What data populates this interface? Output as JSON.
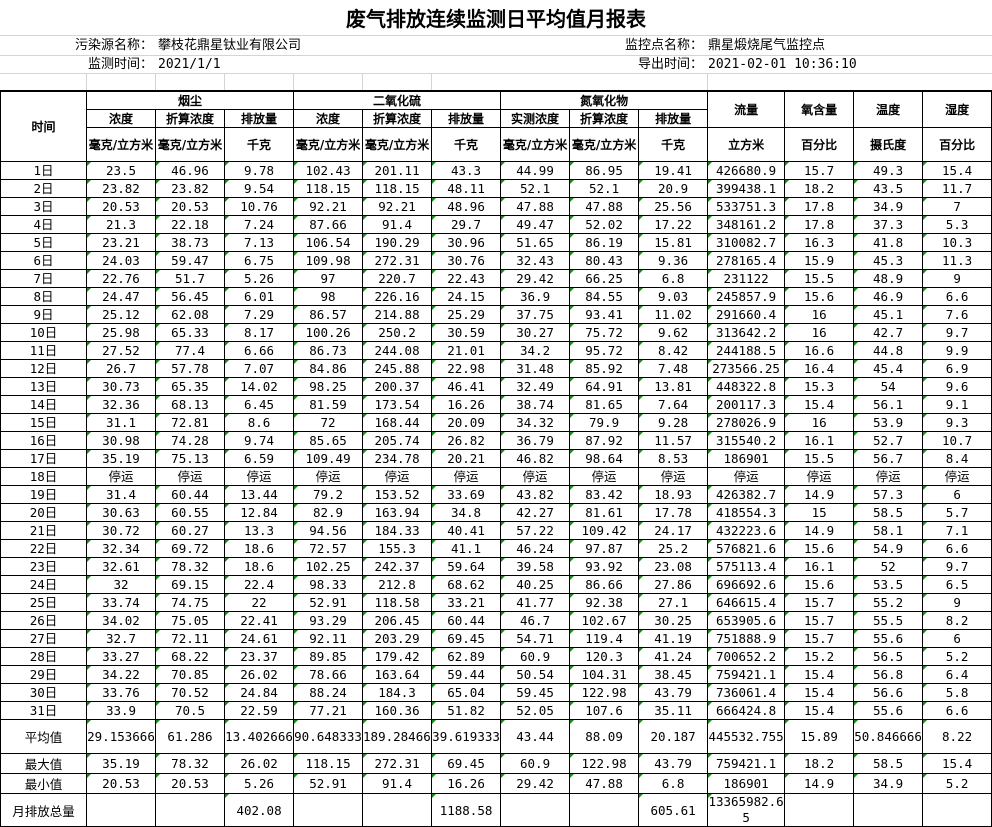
{
  "title": "废气排放连续监测日平均值月报表",
  "info": {
    "source_label": "污染源名称：",
    "source_value": "攀枝花鼎星钛业有限公司",
    "point_label": "监控点名称：",
    "point_value": "鼎星煅烧尾气监控点",
    "time_label": "监测时间：",
    "time_value": "2021/1/1",
    "export_label": "导出时间：",
    "export_value": "2021-02-01 10:36:10"
  },
  "header": {
    "time": "时间",
    "groups": [
      "烟尘",
      "二氧化硫",
      "氮氧化物"
    ],
    "single": [
      "流量",
      "氧含量",
      "温度",
      "湿度"
    ],
    "sub": [
      "浓度",
      "折算浓度",
      "排放量",
      "浓度",
      "折算浓度",
      "排放量",
      "实测浓度",
      "折算浓度",
      "排放量"
    ],
    "units": [
      "毫克/立方米",
      "毫克/立方米",
      "千克",
      "毫克/立方米",
      "毫克/立方米",
      "千克",
      "毫克/立方米",
      "毫克/立方米",
      "千克",
      "立方米",
      "百分比",
      "摄氏度",
      "百分比"
    ]
  },
  "rows": [
    [
      "1日",
      "23.5",
      "46.96",
      "9.78",
      "102.43",
      "201.11",
      "43.3",
      "44.99",
      "86.95",
      "19.41",
      "426680.9",
      "15.7",
      "49.3",
      "15.4"
    ],
    [
      "2日",
      "23.82",
      "23.82",
      "9.54",
      "118.15",
      "118.15",
      "48.11",
      "52.1",
      "52.1",
      "20.9",
      "399438.1",
      "18.2",
      "43.5",
      "11.7"
    ],
    [
      "3日",
      "20.53",
      "20.53",
      "10.76",
      "92.21",
      "92.21",
      "48.96",
      "47.88",
      "47.88",
      "25.56",
      "533751.3",
      "17.8",
      "34.9",
      "7"
    ],
    [
      "4日",
      "21.3",
      "22.18",
      "7.24",
      "87.66",
      "91.4",
      "29.7",
      "49.47",
      "52.02",
      "17.22",
      "348161.2",
      "17.8",
      "37.3",
      "5.3"
    ],
    [
      "5日",
      "23.21",
      "38.73",
      "7.13",
      "106.54",
      "190.29",
      "30.96",
      "51.65",
      "86.19",
      "15.81",
      "310082.7",
      "16.3",
      "41.8",
      "10.3"
    ],
    [
      "6日",
      "24.03",
      "59.47",
      "6.75",
      "109.98",
      "272.31",
      "30.76",
      "32.43",
      "80.43",
      "9.36",
      "278165.4",
      "15.9",
      "45.3",
      "11.3"
    ],
    [
      "7日",
      "22.76",
      "51.7",
      "5.26",
      "97",
      "220.7",
      "22.43",
      "29.42",
      "66.25",
      "6.8",
      "231122",
      "15.5",
      "48.9",
      "9"
    ],
    [
      "8日",
      "24.47",
      "56.45",
      "6.01",
      "98",
      "226.16",
      "24.15",
      "36.9",
      "84.55",
      "9.03",
      "245857.9",
      "15.6",
      "46.9",
      "6.6"
    ],
    [
      "9日",
      "25.12",
      "62.08",
      "7.29",
      "86.57",
      "214.88",
      "25.29",
      "37.75",
      "93.41",
      "11.02",
      "291660.4",
      "16",
      "45.1",
      "7.6"
    ],
    [
      "10日",
      "25.98",
      "65.33",
      "8.17",
      "100.26",
      "250.2",
      "30.59",
      "30.27",
      "75.72",
      "9.62",
      "313642.2",
      "16",
      "42.7",
      "9.7"
    ],
    [
      "11日",
      "27.52",
      "77.4",
      "6.66",
      "86.73",
      "244.08",
      "21.01",
      "34.2",
      "95.72",
      "8.42",
      "244188.5",
      "16.6",
      "44.8",
      "9.9"
    ],
    [
      "12日",
      "26.7",
      "57.78",
      "7.07",
      "84.86",
      "245.88",
      "22.98",
      "31.48",
      "85.92",
      "7.48",
      "273566.25",
      "16.4",
      "45.4",
      "6.9"
    ],
    [
      "13日",
      "30.73",
      "65.35",
      "14.02",
      "98.25",
      "200.37",
      "46.41",
      "32.49",
      "64.91",
      "13.81",
      "448322.8",
      "15.3",
      "54",
      "9.6"
    ],
    [
      "14日",
      "32.36",
      "68.13",
      "6.45",
      "81.59",
      "173.54",
      "16.26",
      "38.74",
      "81.65",
      "7.64",
      "200117.3",
      "15.4",
      "56.1",
      "9.1"
    ],
    [
      "15日",
      "31.1",
      "72.81",
      "8.6",
      "72",
      "168.44",
      "20.09",
      "34.32",
      "79.9",
      "9.28",
      "278026.9",
      "16",
      "53.9",
      "9.3"
    ],
    [
      "16日",
      "30.98",
      "74.28",
      "9.74",
      "85.65",
      "205.74",
      "26.82",
      "36.79",
      "87.92",
      "11.57",
      "315540.2",
      "16.1",
      "52.7",
      "10.7"
    ],
    [
      "17日",
      "35.19",
      "75.13",
      "6.59",
      "109.49",
      "234.78",
      "20.21",
      "46.82",
      "98.64",
      "8.53",
      "186901",
      "15.5",
      "56.7",
      "8.4"
    ],
    [
      "18日",
      "停运",
      "停运",
      "停运",
      "停运",
      "停运",
      "停运",
      "停运",
      "停运",
      "停运",
      "停运",
      "停运",
      "停运",
      "停运"
    ],
    [
      "19日",
      "31.4",
      "60.44",
      "13.44",
      "79.2",
      "153.52",
      "33.69",
      "43.82",
      "83.42",
      "18.93",
      "426382.7",
      "14.9",
      "57.3",
      "6"
    ],
    [
      "20日",
      "30.63",
      "60.55",
      "12.84",
      "82.9",
      "163.94",
      "34.8",
      "42.27",
      "81.61",
      "17.78",
      "418554.3",
      "15",
      "58.5",
      "5.7"
    ],
    [
      "21日",
      "30.72",
      "60.27",
      "13.3",
      "94.56",
      "184.33",
      "40.41",
      "57.22",
      "109.42",
      "24.17",
      "432223.6",
      "14.9",
      "58.1",
      "7.1"
    ],
    [
      "22日",
      "32.34",
      "69.72",
      "18.6",
      "72.57",
      "155.3",
      "41.1",
      "46.24",
      "97.87",
      "25.2",
      "576821.6",
      "15.6",
      "54.9",
      "6.6"
    ],
    [
      "23日",
      "32.61",
      "78.32",
      "18.6",
      "102.25",
      "242.37",
      "59.64",
      "39.58",
      "93.92",
      "23.08",
      "575113.4",
      "16.1",
      "52",
      "9.7"
    ],
    [
      "24日",
      "32",
      "69.15",
      "22.4",
      "98.33",
      "212.8",
      "68.62",
      "40.25",
      "86.66",
      "27.86",
      "696692.6",
      "15.6",
      "53.5",
      "6.5"
    ],
    [
      "25日",
      "33.74",
      "74.75",
      "22",
      "52.91",
      "118.58",
      "33.21",
      "41.77",
      "92.38",
      "27.1",
      "646615.4",
      "15.7",
      "55.2",
      "9"
    ],
    [
      "26日",
      "34.02",
      "75.05",
      "22.41",
      "93.29",
      "206.45",
      "60.44",
      "46.7",
      "102.67",
      "30.25",
      "653905.6",
      "15.7",
      "55.5",
      "8.2"
    ],
    [
      "27日",
      "32.7",
      "72.11",
      "24.61",
      "92.11",
      "203.29",
      "69.45",
      "54.71",
      "119.4",
      "41.19",
      "751888.9",
      "15.7",
      "55.6",
      "6"
    ],
    [
      "28日",
      "33.27",
      "68.22",
      "23.37",
      "89.85",
      "179.42",
      "62.89",
      "60.9",
      "120.3",
      "41.24",
      "700652.2",
      "15.2",
      "56.5",
      "5.2"
    ],
    [
      "29日",
      "34.22",
      "70.85",
      "26.02",
      "78.66",
      "163.64",
      "59.44",
      "50.54",
      "104.31",
      "38.45",
      "759421.1",
      "15.4",
      "56.8",
      "6.4"
    ],
    [
      "30日",
      "33.76",
      "70.52",
      "24.84",
      "88.24",
      "184.3",
      "65.04",
      "59.45",
      "122.98",
      "43.79",
      "736061.4",
      "15.4",
      "56.6",
      "5.8"
    ],
    [
      "31日",
      "33.9",
      "70.5",
      "22.59",
      "77.21",
      "160.36",
      "51.82",
      "52.05",
      "107.6",
      "35.11",
      "666424.8",
      "15.4",
      "55.6",
      "6.6"
    ]
  ],
  "summary": [
    [
      "平均值",
      "29.153666",
      "61.286",
      "13.402666",
      "90.648333",
      "189.284666",
      "39.619333",
      "43.44",
      "88.09",
      "20.187",
      "445532.755",
      "15.89",
      "50.846666",
      "8.22"
    ],
    [
      "最大值",
      "35.19",
      "78.32",
      "26.02",
      "118.15",
      "272.31",
      "69.45",
      "60.9",
      "122.98",
      "43.79",
      "759421.1",
      "18.2",
      "58.5",
      "15.4"
    ],
    [
      "最小值",
      "20.53",
      "20.53",
      "5.26",
      "52.91",
      "91.4",
      "16.26",
      "29.42",
      "47.88",
      "6.8",
      "186901",
      "14.9",
      "34.9",
      "5.2"
    ],
    [
      "月排放总量",
      "",
      "",
      "402.08",
      "",
      "",
      "1188.58",
      "",
      "",
      "605.61",
      "13365982.65",
      "",
      "",
      ""
    ]
  ]
}
